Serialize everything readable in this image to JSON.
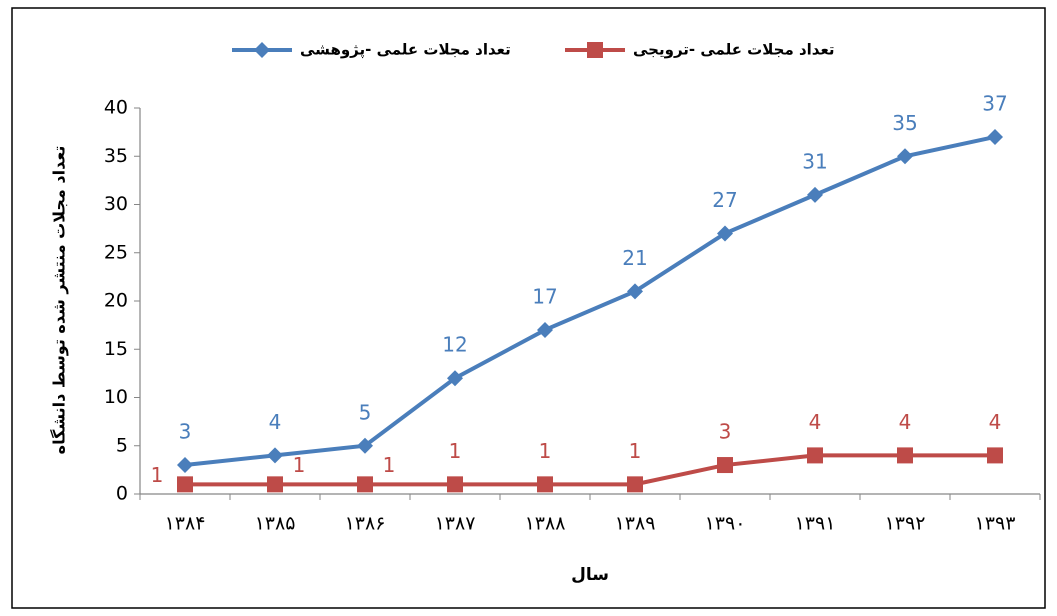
{
  "chart_data": {
    "type": "line",
    "y_label": "تعداد مجلات منتشر شده توسط دانشگاه",
    "x_label": "سال",
    "categories": [
      "۱۳۸۴",
      "۱۳۸۵",
      "۱۳۸۶",
      "۱۳۸۷",
      "۱۳۸۸",
      "۱۳۸۹",
      "۱۳۹۰",
      "۱۳۹۱",
      "۱۳۹۲",
      "۱۳۹۳"
    ],
    "series": [
      {
        "name": "تعداد مجلات علمی -پژوهشی",
        "color": "#4a7ebb",
        "marker": "diamond",
        "values": [
          3,
          4,
          5,
          12,
          17,
          21,
          27,
          31,
          35,
          37
        ]
      },
      {
        "name": "تعداد مجلات علمی -ترویجی",
        "color": "#be4b48",
        "marker": "square",
        "values": [
          1,
          1,
          1,
          1,
          1,
          1,
          3,
          4,
          4,
          4
        ]
      }
    ],
    "ylim": [
      0,
      40
    ],
    "yticks": [
      0,
      5,
      10,
      15,
      20,
      25,
      30,
      35,
      40
    ],
    "grid": false,
    "data_labels": true
  }
}
